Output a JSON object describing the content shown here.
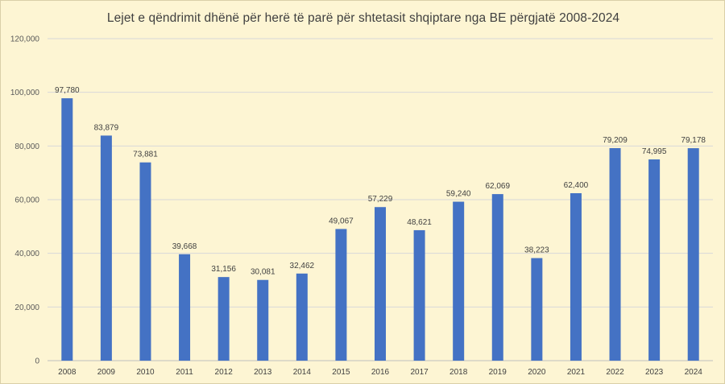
{
  "chart_data": {
    "type": "bar",
    "title": "Lejet e qëndrimit dhënë për herë të parë për shtetasit shqiptare nga BE përgjatë 2008-2024",
    "xlabel": "",
    "ylabel": "",
    "categories": [
      "2008",
      "2009",
      "2010",
      "2011",
      "2012",
      "2013",
      "2014",
      "2015",
      "2016",
      "2017",
      "2018",
      "2019",
      "2020",
      "2021",
      "2022",
      "2023",
      "2024"
    ],
    "values": [
      97780,
      83879,
      73881,
      39668,
      31156,
      30081,
      32462,
      49067,
      57229,
      48621,
      59240,
      62069,
      38223,
      62400,
      79209,
      74995,
      79178
    ],
    "data_labels": [
      "97,780",
      "83,879",
      "73,881",
      "39,668",
      "31,156",
      "30,081",
      "32,462",
      "49,067",
      "57,229",
      "48,621",
      "59,240",
      "62,069",
      "38,223",
      "62,400",
      "79,209",
      "74,995",
      "79,178"
    ],
    "ylim": [
      0,
      120000
    ],
    "y_ticks": [
      0,
      20000,
      40000,
      60000,
      80000,
      100000,
      120000
    ],
    "y_tick_labels": [
      "0",
      "20,000",
      "40,000",
      "60,000",
      "80,000",
      "100,000",
      "120,000"
    ],
    "grid": true,
    "legend": "none",
    "colors": {
      "bar": "#4472c4",
      "background": "#fdf5d3",
      "grid": "#d8d8d8"
    }
  }
}
